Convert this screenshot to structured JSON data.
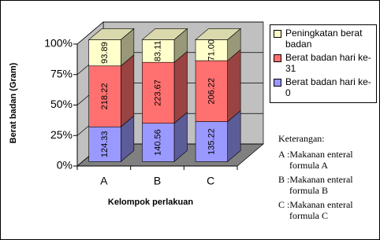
{
  "chart_data": {
    "type": "bar",
    "stacked": "percent",
    "y_label": "Berat badan (Gram)",
    "x_label": "Kelompok perlakuan",
    "categories": [
      "A",
      "B",
      "C"
    ],
    "series": [
      {
        "name": "Berat badan hari ke-0",
        "color": "#9999ff",
        "values": [
          124.33,
          140.56,
          135.22
        ]
      },
      {
        "name": "Berat badan hari ke-31",
        "color": "#ff7070",
        "values": [
          218.22,
          223.67,
          206.22
        ]
      },
      {
        "name": "Peningkatan berat badan",
        "color": "#ffffcc",
        "values": [
          93.89,
          83.11,
          71.0
        ],
        "value_labels": [
          "93.89",
          "83.11",
          "71.00"
        ]
      }
    ],
    "ylim": [
      0,
      100
    ],
    "yticks": [
      {
        "value": 0,
        "label": "0%"
      },
      {
        "value": 25,
        "label": "25%"
      },
      {
        "value": 50,
        "label": "50%"
      },
      {
        "value": 75,
        "label": "75%"
      },
      {
        "value": 100,
        "label": "100%"
      }
    ],
    "grid": true,
    "legend": "right",
    "annotations": [
      "Keterangan:",
      "A :Makanan enteral formula A",
      "B :Makanan enteral formula B",
      "C :Makanan enteral formula C"
    ]
  }
}
